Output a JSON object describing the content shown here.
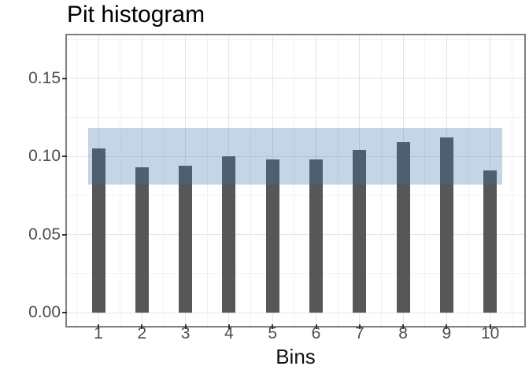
{
  "chart_data": {
    "type": "bar",
    "title": "Pit histogram",
    "xlabel": "Bins",
    "ylabel": "",
    "categories": [
      "1",
      "2",
      "3",
      "4",
      "5",
      "6",
      "7",
      "8",
      "9",
      "10"
    ],
    "values": [
      0.105,
      0.093,
      0.094,
      0.1,
      0.098,
      0.098,
      0.104,
      0.109,
      0.112,
      0.091
    ],
    "band": {
      "description": "uniformity confidence band",
      "ymin": 0.082,
      "ymax": 0.1185,
      "fill": "#3c78aa",
      "alpha": 0.3
    },
    "bar_color": "#575757",
    "y_ticks": [
      {
        "label": "0.00",
        "value": 0.0
      },
      {
        "label": "0.05",
        "value": 0.05
      },
      {
        "label": "0.10",
        "value": 0.1
      },
      {
        "label": "0.15",
        "value": 0.15
      }
    ],
    "y_minor_ticks": [
      0.025,
      0.075,
      0.125,
      0.175
    ],
    "ylim": [
      0,
      0.178
    ],
    "grid": "on",
    "legend": "none"
  }
}
